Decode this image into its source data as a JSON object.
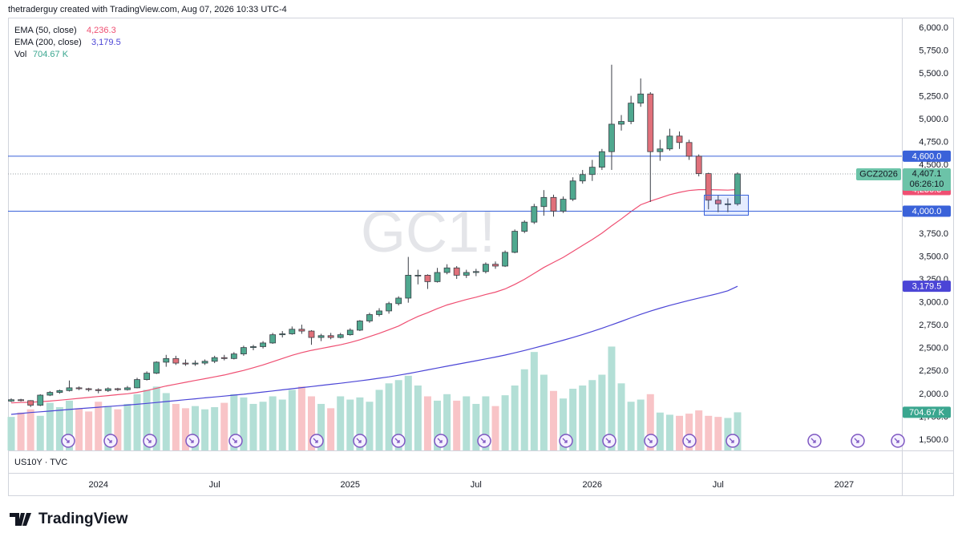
{
  "header": "thetraderguy created with TradingView.com, Aug 07, 2026 10:33 UTC-4",
  "footer_pane": "US10Y · TVC",
  "logo": "TradingView",
  "chart_data": {
    "type": "candlestick",
    "watermark": "GC1!",
    "symbol": "GCZ2026",
    "countdown": "06:26:10",
    "last_price": {
      "value": 4407.1,
      "label": "4,407.1"
    },
    "up_color": "#4fa88f",
    "down_color": "#e0707a",
    "grid": false,
    "ylim": [
      1386,
      6114
    ],
    "yticks": [
      {
        "value": 1500,
        "label": "1,500.0"
      },
      {
        "value": 1750,
        "label": "1,750.0"
      },
      {
        "value": 2000,
        "label": "2,000.0"
      },
      {
        "value": 2250,
        "label": "2,250.0"
      },
      {
        "value": 2500,
        "label": "2,500.0"
      },
      {
        "value": 2750,
        "label": "2,750.0"
      },
      {
        "value": 3000,
        "label": "3,000.0"
      },
      {
        "value": 3250,
        "label": "3,250.0"
      },
      {
        "value": 3500,
        "label": "3,500.0"
      },
      {
        "value": 3750,
        "label": "3,750.0"
      },
      {
        "value": 4000,
        "label": "4,000.0"
      },
      {
        "value": 4250,
        "label": "4,250.0"
      },
      {
        "value": 4500,
        "label": "4,500.0"
      },
      {
        "value": 4750,
        "label": "4,750.0"
      },
      {
        "value": 5000,
        "label": "5,000.0"
      },
      {
        "value": 5250,
        "label": "5,250.0"
      },
      {
        "value": 5500,
        "label": "5,500.0"
      },
      {
        "value": 5750,
        "label": "5,750.0"
      },
      {
        "value": 6000,
        "label": "6,000.0"
      }
    ],
    "hlines": [
      {
        "value": 4600,
        "label": "4,600.0",
        "color": "#3a62d9"
      },
      {
        "value": 4000,
        "label": "4,000.0",
        "color": "#3a62d9"
      }
    ],
    "categories": [
      null,
      null,
      null,
      null,
      null,
      null,
      null,
      null,
      null,
      "2024",
      null,
      null,
      null,
      null,
      null,
      null,
      null,
      null,
      null,
      null,
      null,
      "Jul",
      null,
      null,
      null,
      null,
      null,
      null,
      null,
      null,
      null,
      null,
      null,
      null,
      null,
      "2025",
      null,
      null,
      null,
      null,
      null,
      null,
      null,
      null,
      null,
      null,
      null,
      null,
      "Jul",
      null,
      null,
      null,
      null,
      null,
      null,
      null,
      null,
      null,
      null,
      null,
      "2026",
      null,
      null,
      null,
      null,
      null,
      null,
      null,
      null,
      null,
      null,
      null,
      null,
      "Jul",
      null,
      null,
      null,
      null,
      null,
      null,
      null,
      null,
      null,
      null,
      null,
      null,
      "2027",
      null,
      null,
      null,
      null,
      null
    ],
    "open": [
      1925,
      1940,
      1930,
      1880,
      1990,
      2020,
      2040,
      2070,
      2060,
      2050,
      2040,
      2060,
      2050,
      2070,
      2160,
      2230,
      2350,
      2390,
      2340,
      2330,
      2340,
      2360,
      2400,
      2390,
      2440,
      2510,
      2520,
      2560,
      2650,
      2660,
      2710,
      2690,
      2620,
      2640,
      2620,
      2650,
      2700,
      2800,
      2870,
      2910,
      2990,
      3050,
      3300,
      3300,
      3230,
      3330,
      3380,
      3300,
      3330,
      3340,
      3420,
      3400,
      3550,
      3780,
      3880,
      4050,
      4150,
      4000,
      4130,
      4330,
      4400,
      4480,
      4650,
      4950,
      4980,
      5180,
      5280,
      4650,
      4680,
      4820,
      4750,
      4600,
      4410,
      4120,
      4080,
      4080,
      null,
      null,
      null,
      null,
      null,
      null,
      null,
      null,
      null,
      null,
      null,
      null,
      null,
      null,
      null,
      null
    ],
    "high": [
      1955,
      1950,
      1935,
      2000,
      2035,
      2050,
      2150,
      2085,
      2070,
      2065,
      2075,
      2070,
      2090,
      2180,
      2250,
      2360,
      2430,
      2420,
      2380,
      2370,
      2380,
      2420,
      2430,
      2460,
      2530,
      2540,
      2580,
      2670,
      2690,
      2740,
      2760,
      2700,
      2660,
      2670,
      2670,
      2720,
      2810,
      2890,
      2940,
      3010,
      3070,
      3500,
      3360,
      3310,
      3380,
      3420,
      3400,
      3360,
      3370,
      3440,
      3450,
      3570,
      3800,
      3900,
      4080,
      4230,
      4180,
      4160,
      4370,
      4450,
      4560,
      4680,
      5600,
      5050,
      5260,
      5450,
      5300,
      4780,
      4900,
      4870,
      4780,
      4620,
      4420,
      4170,
      4140,
      4424,
      null,
      null,
      null,
      null,
      null,
      null,
      null,
      null,
      null,
      null,
      null,
      null,
      null,
      null,
      null,
      null
    ],
    "low": [
      1915,
      1920,
      1860,
      1870,
      1980,
      2005,
      2030,
      2045,
      2030,
      2010,
      2025,
      2035,
      2040,
      2065,
      2150,
      2220,
      2300,
      2320,
      2310,
      2310,
      2320,
      2340,
      2370,
      2380,
      2420,
      2480,
      2500,
      2550,
      2620,
      2650,
      2660,
      2540,
      2580,
      2600,
      2610,
      2640,
      2690,
      2780,
      2850,
      2880,
      2970,
      3000,
      3200,
      3150,
      3220,
      3310,
      3260,
      3270,
      3290,
      3320,
      3370,
      3390,
      3540,
      3760,
      3860,
      3950,
      3940,
      3980,
      4110,
      4300,
      4330,
      4450,
      4450,
      4880,
      4950,
      5140,
      4100,
      4550,
      4660,
      4680,
      4560,
      4380,
      4020,
      3990,
      3990,
      4060,
      null,
      null,
      null,
      null,
      null,
      null,
      null,
      null,
      null,
      null,
      null,
      null,
      null,
      null,
      null,
      null
    ],
    "close": [
      1940,
      1930,
      1880,
      1990,
      2020,
      2040,
      2070,
      2060,
      2050,
      2040,
      2060,
      2050,
      2070,
      2160,
      2230,
      2350,
      2390,
      2340,
      2330,
      2340,
      2360,
      2400,
      2390,
      2440,
      2510,
      2520,
      2560,
      2650,
      2660,
      2710,
      2690,
      2620,
      2640,
      2620,
      2650,
      2700,
      2800,
      2870,
      2910,
      2990,
      3050,
      3300,
      3300,
      3230,
      3330,
      3380,
      3300,
      3330,
      3340,
      3420,
      3400,
      3550,
      3780,
      3880,
      4050,
      4150,
      4000,
      4130,
      4330,
      4400,
      4480,
      4650,
      4950,
      4980,
      5180,
      5280,
      4650,
      4680,
      4820,
      4750,
      4600,
      4410,
      4120,
      4080,
      4080,
      4407.1,
      null,
      null,
      null,
      null,
      null,
      null,
      null,
      null,
      null,
      null,
      null,
      null,
      null,
      null,
      null,
      null
    ],
    "volume": {
      "name": "Vol",
      "value_label": "704.67 K",
      "color": "#3aa68f",
      "up_color": "#b3dfd6",
      "down_color": "#f8c4c7",
      "ylim": [
        0,
        8000000
      ],
      "values": [
        620000,
        700000,
        760000,
        640000,
        880000,
        800000,
        920000,
        780000,
        720000,
        900000,
        820000,
        760000,
        860000,
        1040000,
        1120000,
        1180000,
        1060000,
        860000,
        780000,
        820000,
        760000,
        800000,
        880000,
        1040000,
        980000,
        860000,
        900000,
        1000000,
        940000,
        1120000,
        1180000,
        1000000,
        860000,
        780000,
        1000000,
        940000,
        980000,
        900000,
        1120000,
        1240000,
        1300000,
        1380000,
        1200000,
        1000000,
        920000,
        1040000,
        920000,
        1000000,
        860000,
        1000000,
        820000,
        1020000,
        1200000,
        1500000,
        1820000,
        1400000,
        1100000,
        960000,
        1140000,
        1200000,
        1300000,
        1400000,
        1920000,
        1240000,
        900000,
        940000,
        1040000,
        700000,
        660000,
        640000,
        680000,
        740000,
        640000,
        620000,
        600000,
        704670,
        null,
        null,
        null,
        null,
        null,
        null,
        null,
        null,
        null,
        null,
        null,
        null,
        null,
        null,
        null,
        null
      ]
    },
    "series": [
      {
        "name": "EMA (50, close)",
        "color": "#ef4f72",
        "value_label": "4,236.3",
        "values": [
          1905,
          1910,
          1912,
          1918,
          1925,
          1935,
          1945,
          1955,
          1965,
          1975,
          1985,
          1995,
          2005,
          2020,
          2040,
          2065,
          2090,
          2110,
          2130,
          2150,
          2170,
          2190,
          2210,
          2235,
          2260,
          2290,
          2320,
          2355,
          2390,
          2425,
          2455,
          2480,
          2500,
          2520,
          2540,
          2565,
          2595,
          2630,
          2665,
          2705,
          2745,
          2800,
          2850,
          2890,
          2935,
          2975,
          3005,
          3035,
          3060,
          3090,
          3115,
          3150,
          3200,
          3255,
          3320,
          3385,
          3440,
          3495,
          3560,
          3625,
          3690,
          3760,
          3840,
          3915,
          3995,
          4070,
          4110,
          4145,
          4180,
          4205,
          4225,
          4235,
          4235,
          4232,
          4230,
          4236.3,
          null,
          null,
          null,
          null,
          null,
          null,
          null,
          null,
          null,
          null,
          null,
          null,
          null,
          null,
          null,
          null
        ]
      },
      {
        "name": "EMA (200, close)",
        "color": "#4b45d6",
        "value_label": "3,179.5",
        "values": [
          1780,
          1790,
          1800,
          1808,
          1816,
          1825,
          1833,
          1842,
          1850,
          1858,
          1866,
          1874,
          1882,
          1890,
          1900,
          1910,
          1920,
          1930,
          1940,
          1950,
          1960,
          1970,
          1980,
          1990,
          2000,
          2012,
          2024,
          2036,
          2048,
          2060,
          2072,
          2084,
          2096,
          2108,
          2120,
          2133,
          2146,
          2160,
          2175,
          2190,
          2207,
          2226,
          2246,
          2266,
          2286,
          2306,
          2326,
          2346,
          2366,
          2386,
          2406,
          2428,
          2452,
          2478,
          2505,
          2533,
          2561,
          2590,
          2620,
          2652,
          2685,
          2720,
          2758,
          2796,
          2835,
          2873,
          2908,
          2940,
          2970,
          2998,
          3025,
          3050,
          3075,
          3100,
          3130,
          3179.5,
          null,
          null,
          null,
          null,
          null,
          null,
          null,
          null,
          null,
          null,
          null,
          null,
          null,
          null,
          null,
          null
        ]
      }
    ]
  }
}
